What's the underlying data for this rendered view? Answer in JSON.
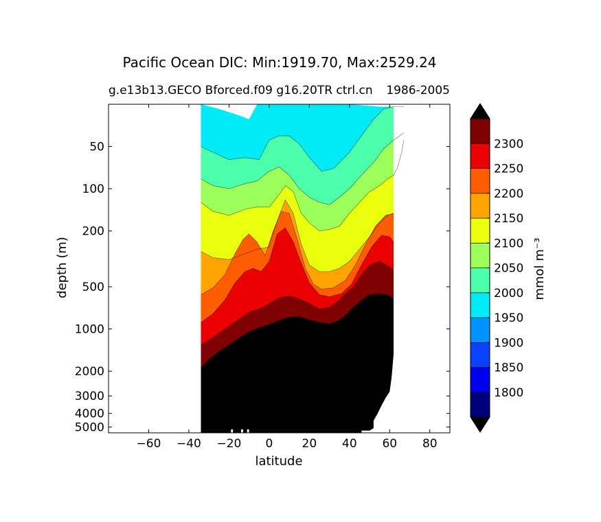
{
  "chart_data": {
    "type": "contourf",
    "title": "Pacific Ocean DIC: Min:1919.70, Max:2529.24",
    "subtitle_left": "g.e13b13.GECO Bforced.f09 g16.20TR ctrl.cn",
    "subtitle_right": "1986-2005",
    "xlabel": "latitude",
    "ylabel": "depth (m)",
    "xlim": [
      -80,
      90
    ],
    "y_scale": "log (depth, inverted)",
    "ylim": [
      5500,
      25
    ],
    "x_ticks": [
      -60,
      -40,
      -20,
      0,
      20,
      40,
      60,
      80
    ],
    "x_tick_labels": [
      "−60",
      "−40",
      "−20",
      "0",
      "20",
      "40",
      "60",
      "80"
    ],
    "y_ticks": [
      50,
      100,
      200,
      500,
      1000,
      2000,
      3000,
      4000,
      5000
    ],
    "y_tick_labels": [
      "50",
      "100",
      "200",
      "500",
      "1000",
      "2000",
      "3000",
      "4000",
      "5000"
    ],
    "colorbar": {
      "label": "mmol m⁻³",
      "extend": "both",
      "levels": [
        1750,
        1800,
        1850,
        1900,
        1950,
        2000,
        2050,
        2100,
        2150,
        2200,
        2250,
        2300,
        2350
      ],
      "tick_values": [
        1800,
        1850,
        1900,
        1950,
        2000,
        2050,
        2100,
        2150,
        2200,
        2250,
        2300
      ],
      "tick_labels": [
        "1800",
        "1850",
        "1900",
        "1950",
        "2000",
        "2050",
        "2100",
        "2150",
        "2200",
        "2250",
        "2300"
      ],
      "colors": [
        "#00007f",
        "#0000ef",
        "#0c40ff",
        "#0094ff",
        "#00eaf7",
        "#4cffaa",
        "#9dff59",
        "#e8ff0e",
        "#ffa400",
        "#ff5e00",
        "#ea0000",
        "#7f0000"
      ],
      "under_color": "#000000",
      "over_color": "#000000"
    },
    "land_color": "#000000",
    "data_extent_lat": [
      -34,
      67
    ],
    "contour_boundaries": [
      {
        "upper": 2000,
        "points": [
          [
            -34,
            25
          ],
          [
            -25,
            27
          ],
          [
            -15,
            30
          ],
          [
            -10,
            32
          ],
          [
            -6,
            25
          ],
          [
            0,
            25
          ],
          [
            20,
            25
          ],
          [
            40,
            25
          ],
          [
            55,
            26
          ],
          [
            62,
            26
          ]
        ]
      },
      {
        "upper": 2050,
        "points": [
          [
            -34,
            50
          ],
          [
            -28,
            55
          ],
          [
            -20,
            62
          ],
          [
            -12,
            60
          ],
          [
            -5,
            62
          ],
          [
            0,
            45
          ],
          [
            5,
            42
          ],
          [
            10,
            42
          ],
          [
            15,
            48
          ],
          [
            20,
            60
          ],
          [
            26,
            75
          ],
          [
            32,
            72
          ],
          [
            40,
            55
          ],
          [
            47,
            40
          ],
          [
            52,
            32
          ],
          [
            57,
            27
          ],
          [
            62,
            26
          ],
          [
            67,
            26
          ]
        ]
      },
      {
        "upper": 2100,
        "points": [
          [
            -34,
            85
          ],
          [
            -28,
            95
          ],
          [
            -20,
            100
          ],
          [
            -12,
            92
          ],
          [
            -6,
            88
          ],
          [
            0,
            75
          ],
          [
            5,
            70
          ],
          [
            10,
            80
          ],
          [
            15,
            100
          ],
          [
            20,
            115
          ],
          [
            25,
            125
          ],
          [
            30,
            130
          ],
          [
            35,
            115
          ],
          [
            40,
            100
          ],
          [
            46,
            80
          ],
          [
            52,
            65
          ],
          [
            57,
            52
          ],
          [
            62,
            45
          ],
          [
            67,
            40
          ]
        ]
      },
      {
        "upper": 2150,
        "points": [
          [
            -34,
            125
          ],
          [
            -28,
            145
          ],
          [
            -20,
            155
          ],
          [
            -12,
            140
          ],
          [
            -6,
            135
          ],
          [
            0,
            135
          ],
          [
            4,
            115
          ],
          [
            8,
            95
          ],
          [
            12,
            105
          ],
          [
            16,
            150
          ],
          [
            20,
            175
          ],
          [
            25,
            200
          ],
          [
            30,
            195
          ],
          [
            35,
            185
          ],
          [
            40,
            150
          ],
          [
            45,
            125
          ],
          [
            50,
            105
          ],
          [
            55,
            95
          ],
          [
            59,
            85
          ],
          [
            62,
            80
          ],
          [
            64,
            70
          ],
          [
            66,
            55
          ],
          [
            67,
            45
          ]
        ]
      },
      {
        "upper": 2200,
        "points": [
          [
            -34,
            280
          ],
          [
            -28,
            310
          ],
          [
            -20,
            320
          ],
          [
            -12,
            290
          ],
          [
            -6,
            270
          ],
          [
            0,
            260
          ],
          [
            4,
            170
          ],
          [
            8,
            120
          ],
          [
            12,
            150
          ],
          [
            16,
            250
          ],
          [
            20,
            350
          ],
          [
            25,
            390
          ],
          [
            30,
            390
          ],
          [
            35,
            370
          ],
          [
            40,
            330
          ],
          [
            45,
            270
          ],
          [
            50,
            220
          ],
          [
            55,
            175
          ],
          [
            59,
            155
          ],
          [
            62,
            150
          ]
        ]
      },
      {
        "upper": 2250,
        "points": [
          [
            -34,
            570
          ],
          [
            -28,
            510
          ],
          [
            -22,
            410
          ],
          [
            -17,
            290
          ],
          [
            -13,
            230
          ],
          [
            -10,
            210
          ],
          [
            -6,
            240
          ],
          [
            -2,
            300
          ],
          [
            2,
            200
          ],
          [
            6,
            145
          ],
          [
            10,
            150
          ],
          [
            14,
            230
          ],
          [
            18,
            370
          ],
          [
            22,
            480
          ],
          [
            26,
            520
          ],
          [
            32,
            510
          ],
          [
            38,
            450
          ],
          [
            43,
            350
          ],
          [
            48,
            250
          ],
          [
            53,
            185
          ],
          [
            58,
            155
          ],
          [
            62,
            150
          ]
        ]
      },
      {
        "upper": 2300,
        "points": [
          [
            -34,
            900
          ],
          [
            -28,
            780
          ],
          [
            -22,
            620
          ],
          [
            -17,
            470
          ],
          [
            -12,
            390
          ],
          [
            -8,
            370
          ],
          [
            -4,
            390
          ],
          [
            0,
            330
          ],
          [
            4,
            210
          ],
          [
            8,
            190
          ],
          [
            12,
            240
          ],
          [
            16,
            340
          ],
          [
            20,
            470
          ],
          [
            25,
            570
          ],
          [
            30,
            590
          ],
          [
            36,
            560
          ],
          [
            41,
            480
          ],
          [
            46,
            350
          ],
          [
            51,
            260
          ],
          [
            56,
            215
          ],
          [
            60,
            220
          ],
          [
            62,
            240
          ]
        ]
      },
      {
        "upper": 2350,
        "points": [
          [
            -34,
            1300
          ],
          [
            -28,
            1150
          ],
          [
            -22,
            1000
          ],
          [
            -16,
            870
          ],
          [
            -10,
            760
          ],
          [
            -5,
            720
          ],
          [
            0,
            660
          ],
          [
            5,
            600
          ],
          [
            10,
            580
          ],
          [
            15,
            610
          ],
          [
            20,
            660
          ],
          [
            25,
            720
          ],
          [
            30,
            700
          ],
          [
            34,
            640
          ],
          [
            38,
            560
          ],
          [
            42,
            500
          ],
          [
            46,
            410
          ],
          [
            50,
            350
          ],
          [
            55,
            330
          ],
          [
            60,
            360
          ],
          [
            62,
            380
          ]
        ]
      },
      {
        "upper": "over",
        "points": [
          [
            -34,
            1900
          ],
          [
            -30,
            1650
          ],
          [
            -25,
            1450
          ],
          [
            -20,
            1300
          ],
          [
            -15,
            1160
          ],
          [
            -10,
            1050
          ],
          [
            -5,
            980
          ],
          [
            0,
            930
          ],
          [
            5,
            870
          ],
          [
            10,
            820
          ],
          [
            15,
            820
          ],
          [
            20,
            860
          ],
          [
            25,
            900
          ],
          [
            30,
            920
          ],
          [
            34,
            880
          ],
          [
            38,
            800
          ],
          [
            42,
            700
          ],
          [
            46,
            620
          ],
          [
            50,
            570
          ],
          [
            55,
            560
          ],
          [
            60,
            580
          ],
          [
            62,
            620
          ]
        ]
      }
    ],
    "bottom_topography": [
      [
        -34,
        5500
      ],
      [
        2,
        5500
      ],
      [
        46,
        5500
      ],
      [
        46,
        5300
      ],
      [
        50,
        5300
      ],
      [
        52,
        5100
      ],
      [
        52,
        4500
      ],
      [
        54,
        4000
      ],
      [
        56,
        3500
      ],
      [
        58,
        3100
      ],
      [
        60,
        2800
      ],
      [
        61,
        2200
      ],
      [
        62,
        1500
      ],
      [
        62,
        800
      ],
      [
        62,
        25
      ],
      [
        67,
        25
      ]
    ]
  }
}
